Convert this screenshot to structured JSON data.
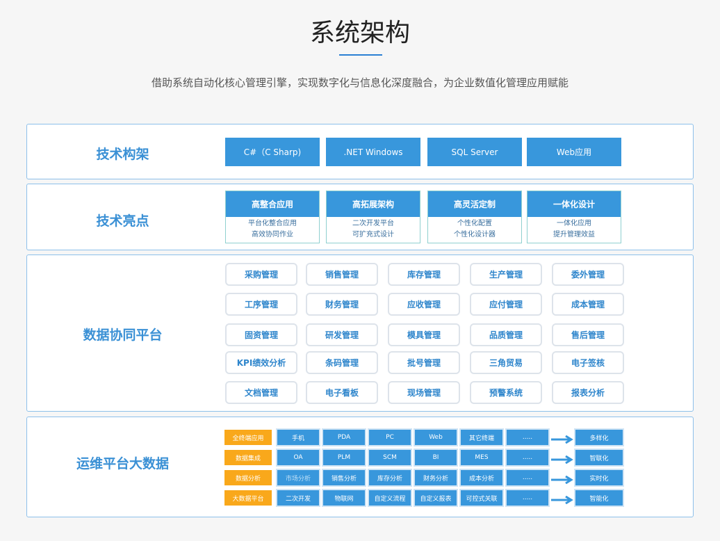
{
  "title": "系统架构",
  "subtitle": "借助系统自动化核心管理引擎，实现数字化与信息化深度融合，为企业数值化管理应用赋能",
  "tech_stack": {
    "label": "技术构架",
    "items": [
      "C#（C Sharp)",
      ".NET Windows",
      "SQL Server",
      "Web应用"
    ]
  },
  "highlights": {
    "label": "技术亮点",
    "items": [
      {
        "title": "高整合应用",
        "lines": [
          "平台化整合应用",
          "高效协同作业"
        ]
      },
      {
        "title": "高拓展架构",
        "lines": [
          "二次开发平台",
          "可扩充式设计"
        ]
      },
      {
        "title": "高灵活定制",
        "lines": [
          "个性化配置",
          "个性化设计器"
        ]
      },
      {
        "title": "一体化设计",
        "lines": [
          "一体化应用",
          "提升管理效益"
        ]
      }
    ]
  },
  "modules": {
    "label": "数据协同平台",
    "items": [
      "采购管理",
      "销售管理",
      "库存管理",
      "生产管理",
      "委外管理",
      "工序管理",
      "财务管理",
      "应收管理",
      "应付管理",
      "成本管理",
      "固资管理",
      "研发管理",
      "模具管理",
      "品质管理",
      "售后管理",
      "KPI绩效分析",
      "条码管理",
      "批号管理",
      "三角贸易",
      "电子签核",
      "文档管理",
      "电子看板",
      "现场管理",
      "预警系统",
      "报表分析"
    ]
  },
  "ops": {
    "label": "运维平台大数据",
    "rows": [
      {
        "category": "全终端应用",
        "items": [
          "手机",
          "PDA",
          "PC",
          "Web",
          "其它终端",
          "....."
        ],
        "result": "多样化"
      },
      {
        "category": "数据集成",
        "items": [
          "OA",
          "PLM",
          "SCM",
          "BI",
          "MES",
          "....."
        ],
        "result": "智联化"
      },
      {
        "category": "数据分析",
        "items": [
          "市场分析",
          "销售分析",
          "库存分析",
          "财务分析",
          "成本分析",
          "....."
        ],
        "result": "实时化"
      },
      {
        "category": "大数据平台",
        "items": [
          "二次开发",
          "物联网",
          "自定义流程",
          "自定义报表",
          "可控式关联",
          "....."
        ],
        "result": "智能化"
      }
    ]
  },
  "colors": {
    "accent": "#3897dc",
    "orange": "#f9a81b",
    "label": "#3a90d5"
  }
}
